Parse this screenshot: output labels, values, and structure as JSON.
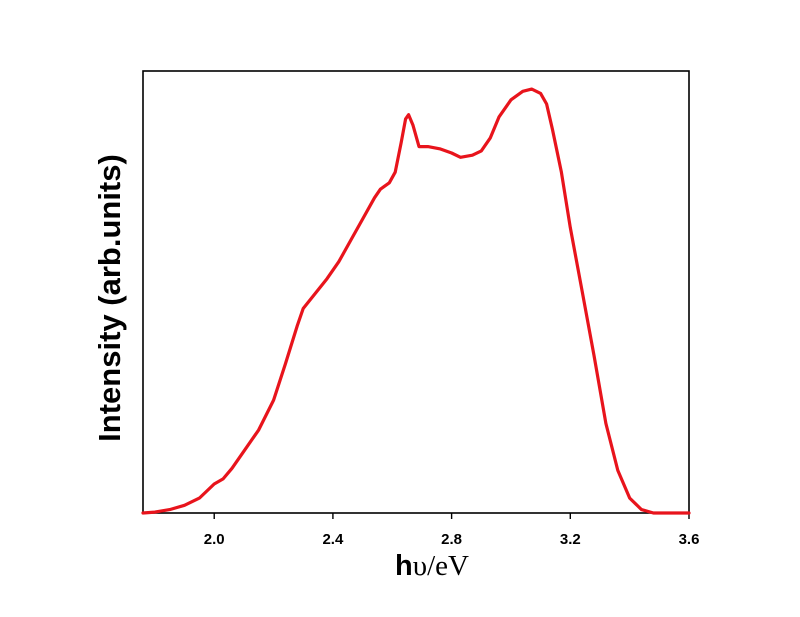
{
  "chart_data": {
    "type": "line",
    "title": "",
    "xlabel_prefix": "h",
    "xlabel_suffix": "υ/eV",
    "ylabel": "Intensity (arb.units)",
    "xlim": [
      1.76,
      3.6
    ],
    "ylim": [
      0,
      1.0
    ],
    "xticks": [
      "2.0",
      "2.4",
      "2.8",
      "3.2",
      "3.6"
    ],
    "yticks_shown": false,
    "grid": false,
    "legend": "none",
    "series": [
      {
        "color": "#e8141c",
        "points": [
          [
            1.76,
            0.0
          ],
          [
            1.8,
            0.002
          ],
          [
            1.85,
            0.008
          ],
          [
            1.9,
            0.018
          ],
          [
            1.95,
            0.035
          ],
          [
            2.0,
            0.068
          ],
          [
            2.03,
            0.08
          ],
          [
            2.06,
            0.105
          ],
          [
            2.1,
            0.145
          ],
          [
            2.15,
            0.195
          ],
          [
            2.2,
            0.265
          ],
          [
            2.24,
            0.35
          ],
          [
            2.28,
            0.44
          ],
          [
            2.3,
            0.48
          ],
          [
            2.34,
            0.515
          ],
          [
            2.38,
            0.55
          ],
          [
            2.42,
            0.59
          ],
          [
            2.46,
            0.64
          ],
          [
            2.5,
            0.69
          ],
          [
            2.54,
            0.74
          ],
          [
            2.56,
            0.76
          ],
          [
            2.59,
            0.775
          ],
          [
            2.61,
            0.8
          ],
          [
            2.63,
            0.87
          ],
          [
            2.645,
            0.925
          ],
          [
            2.655,
            0.935
          ],
          [
            2.67,
            0.91
          ],
          [
            2.69,
            0.86
          ],
          [
            2.72,
            0.86
          ],
          [
            2.76,
            0.855
          ],
          [
            2.8,
            0.845
          ],
          [
            2.83,
            0.835
          ],
          [
            2.87,
            0.84
          ],
          [
            2.9,
            0.85
          ],
          [
            2.93,
            0.88
          ],
          [
            2.96,
            0.93
          ],
          [
            3.0,
            0.97
          ],
          [
            3.04,
            0.99
          ],
          [
            3.07,
            0.995
          ],
          [
            3.1,
            0.985
          ],
          [
            3.12,
            0.96
          ],
          [
            3.14,
            0.9
          ],
          [
            3.17,
            0.8
          ],
          [
            3.2,
            0.67
          ],
          [
            3.24,
            0.52
          ],
          [
            3.28,
            0.37
          ],
          [
            3.32,
            0.21
          ],
          [
            3.36,
            0.1
          ],
          [
            3.4,
            0.035
          ],
          [
            3.44,
            0.008
          ],
          [
            3.48,
            0.0
          ],
          [
            3.6,
            0.0
          ]
        ]
      }
    ]
  }
}
